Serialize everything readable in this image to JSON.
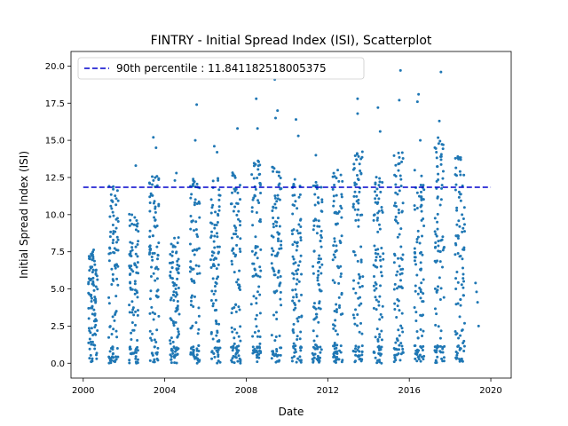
{
  "chart_data": {
    "type": "scatter",
    "title": "FINTRY - Initial Spread Index (ISI), Scatterplot",
    "xlabel": "Date",
    "ylabel": "Initial Spread Index (ISI)",
    "xlim": [
      1999.4,
      2021.0
    ],
    "ylim": [
      -0.999,
      20.979
    ],
    "x_ticks": [
      "2000",
      "2004",
      "2008",
      "2012",
      "2016",
      "2020"
    ],
    "y_ticks": [
      "0.0",
      "2.5",
      "5.0",
      "7.5",
      "10.0",
      "12.5",
      "15.0",
      "17.5",
      "20.0"
    ],
    "legend": {
      "position": "top-left",
      "entries": [
        "90th percentile : 11.841182518005375"
      ]
    },
    "reference_line": {
      "name": "90th percentile : 11.841182518005375",
      "y": 11.841182518005375,
      "x_range": [
        2000.0,
        2020.0
      ],
      "style": "dashed",
      "color": "#0000cc"
    },
    "series_color": "#1f77b4",
    "seasons": [
      {
        "year": 2000,
        "start": 2000.25,
        "end": 2000.7,
        "max": 7.8,
        "peaks": []
      },
      {
        "year": 2001,
        "start": 2001.25,
        "end": 2001.72,
        "max": 12.0,
        "peaks": []
      },
      {
        "year": 2002,
        "start": 2002.25,
        "end": 2002.72,
        "max": 10.3,
        "peaks": [
          13.3
        ]
      },
      {
        "year": 2003,
        "start": 2003.25,
        "end": 2003.72,
        "max": 12.9,
        "peaks": [
          14.5,
          15.2
        ]
      },
      {
        "year": 2004,
        "start": 2004.25,
        "end": 2004.72,
        "max": 8.5,
        "peaks": [
          12.3,
          12.8
        ]
      },
      {
        "year": 2005,
        "start": 2005.25,
        "end": 2005.72,
        "max": 12.6,
        "peaks": [
          15.0,
          17.4
        ]
      },
      {
        "year": 2006,
        "start": 2006.25,
        "end": 2006.72,
        "max": 12.5,
        "peaks": [
          14.2,
          14.6
        ]
      },
      {
        "year": 2007,
        "start": 2007.25,
        "end": 2007.72,
        "max": 13.0,
        "peaks": [
          15.8
        ]
      },
      {
        "year": 2008,
        "start": 2008.25,
        "end": 2008.72,
        "max": 13.8,
        "peaks": [
          15.8,
          17.8
        ]
      },
      {
        "year": 2009,
        "start": 2009.25,
        "end": 2009.72,
        "max": 13.5,
        "peaks": [
          16.5,
          17.0,
          19.1
        ]
      },
      {
        "year": 2010,
        "start": 2010.25,
        "end": 2010.72,
        "max": 12.5,
        "peaks": [
          15.3,
          16.4
        ]
      },
      {
        "year": 2011,
        "start": 2011.25,
        "end": 2011.72,
        "max": 12.2,
        "peaks": [
          14.0
        ]
      },
      {
        "year": 2012,
        "start": 2012.25,
        "end": 2012.72,
        "max": 13.1,
        "peaks": []
      },
      {
        "year": 2013,
        "start": 2013.25,
        "end": 2013.72,
        "max": 14.4,
        "peaks": [
          16.8,
          17.8
        ]
      },
      {
        "year": 2014,
        "start": 2014.25,
        "end": 2014.72,
        "max": 12.8,
        "peaks": [
          15.6,
          17.2
        ]
      },
      {
        "year": 2015,
        "start": 2015.25,
        "end": 2015.72,
        "max": 14.3,
        "peaks": [
          17.7,
          19.7
        ]
      },
      {
        "year": 2016,
        "start": 2016.25,
        "end": 2016.72,
        "max": 13.0,
        "peaks": [
          15.0,
          17.6,
          18.1
        ]
      },
      {
        "year": 2017,
        "start": 2017.25,
        "end": 2017.72,
        "max": 15.2,
        "peaks": [
          16.3,
          19.6
        ]
      },
      {
        "year": 2018,
        "start": 2018.25,
        "end": 2018.72,
        "max": 14.3,
        "peaks": []
      },
      {
        "year": 2019,
        "start": 2019.25,
        "end": 2019.4,
        "max": 5.4,
        "peaks": [],
        "points": [
          5.4,
          4.8,
          4.1,
          2.5
        ]
      }
    ]
  }
}
